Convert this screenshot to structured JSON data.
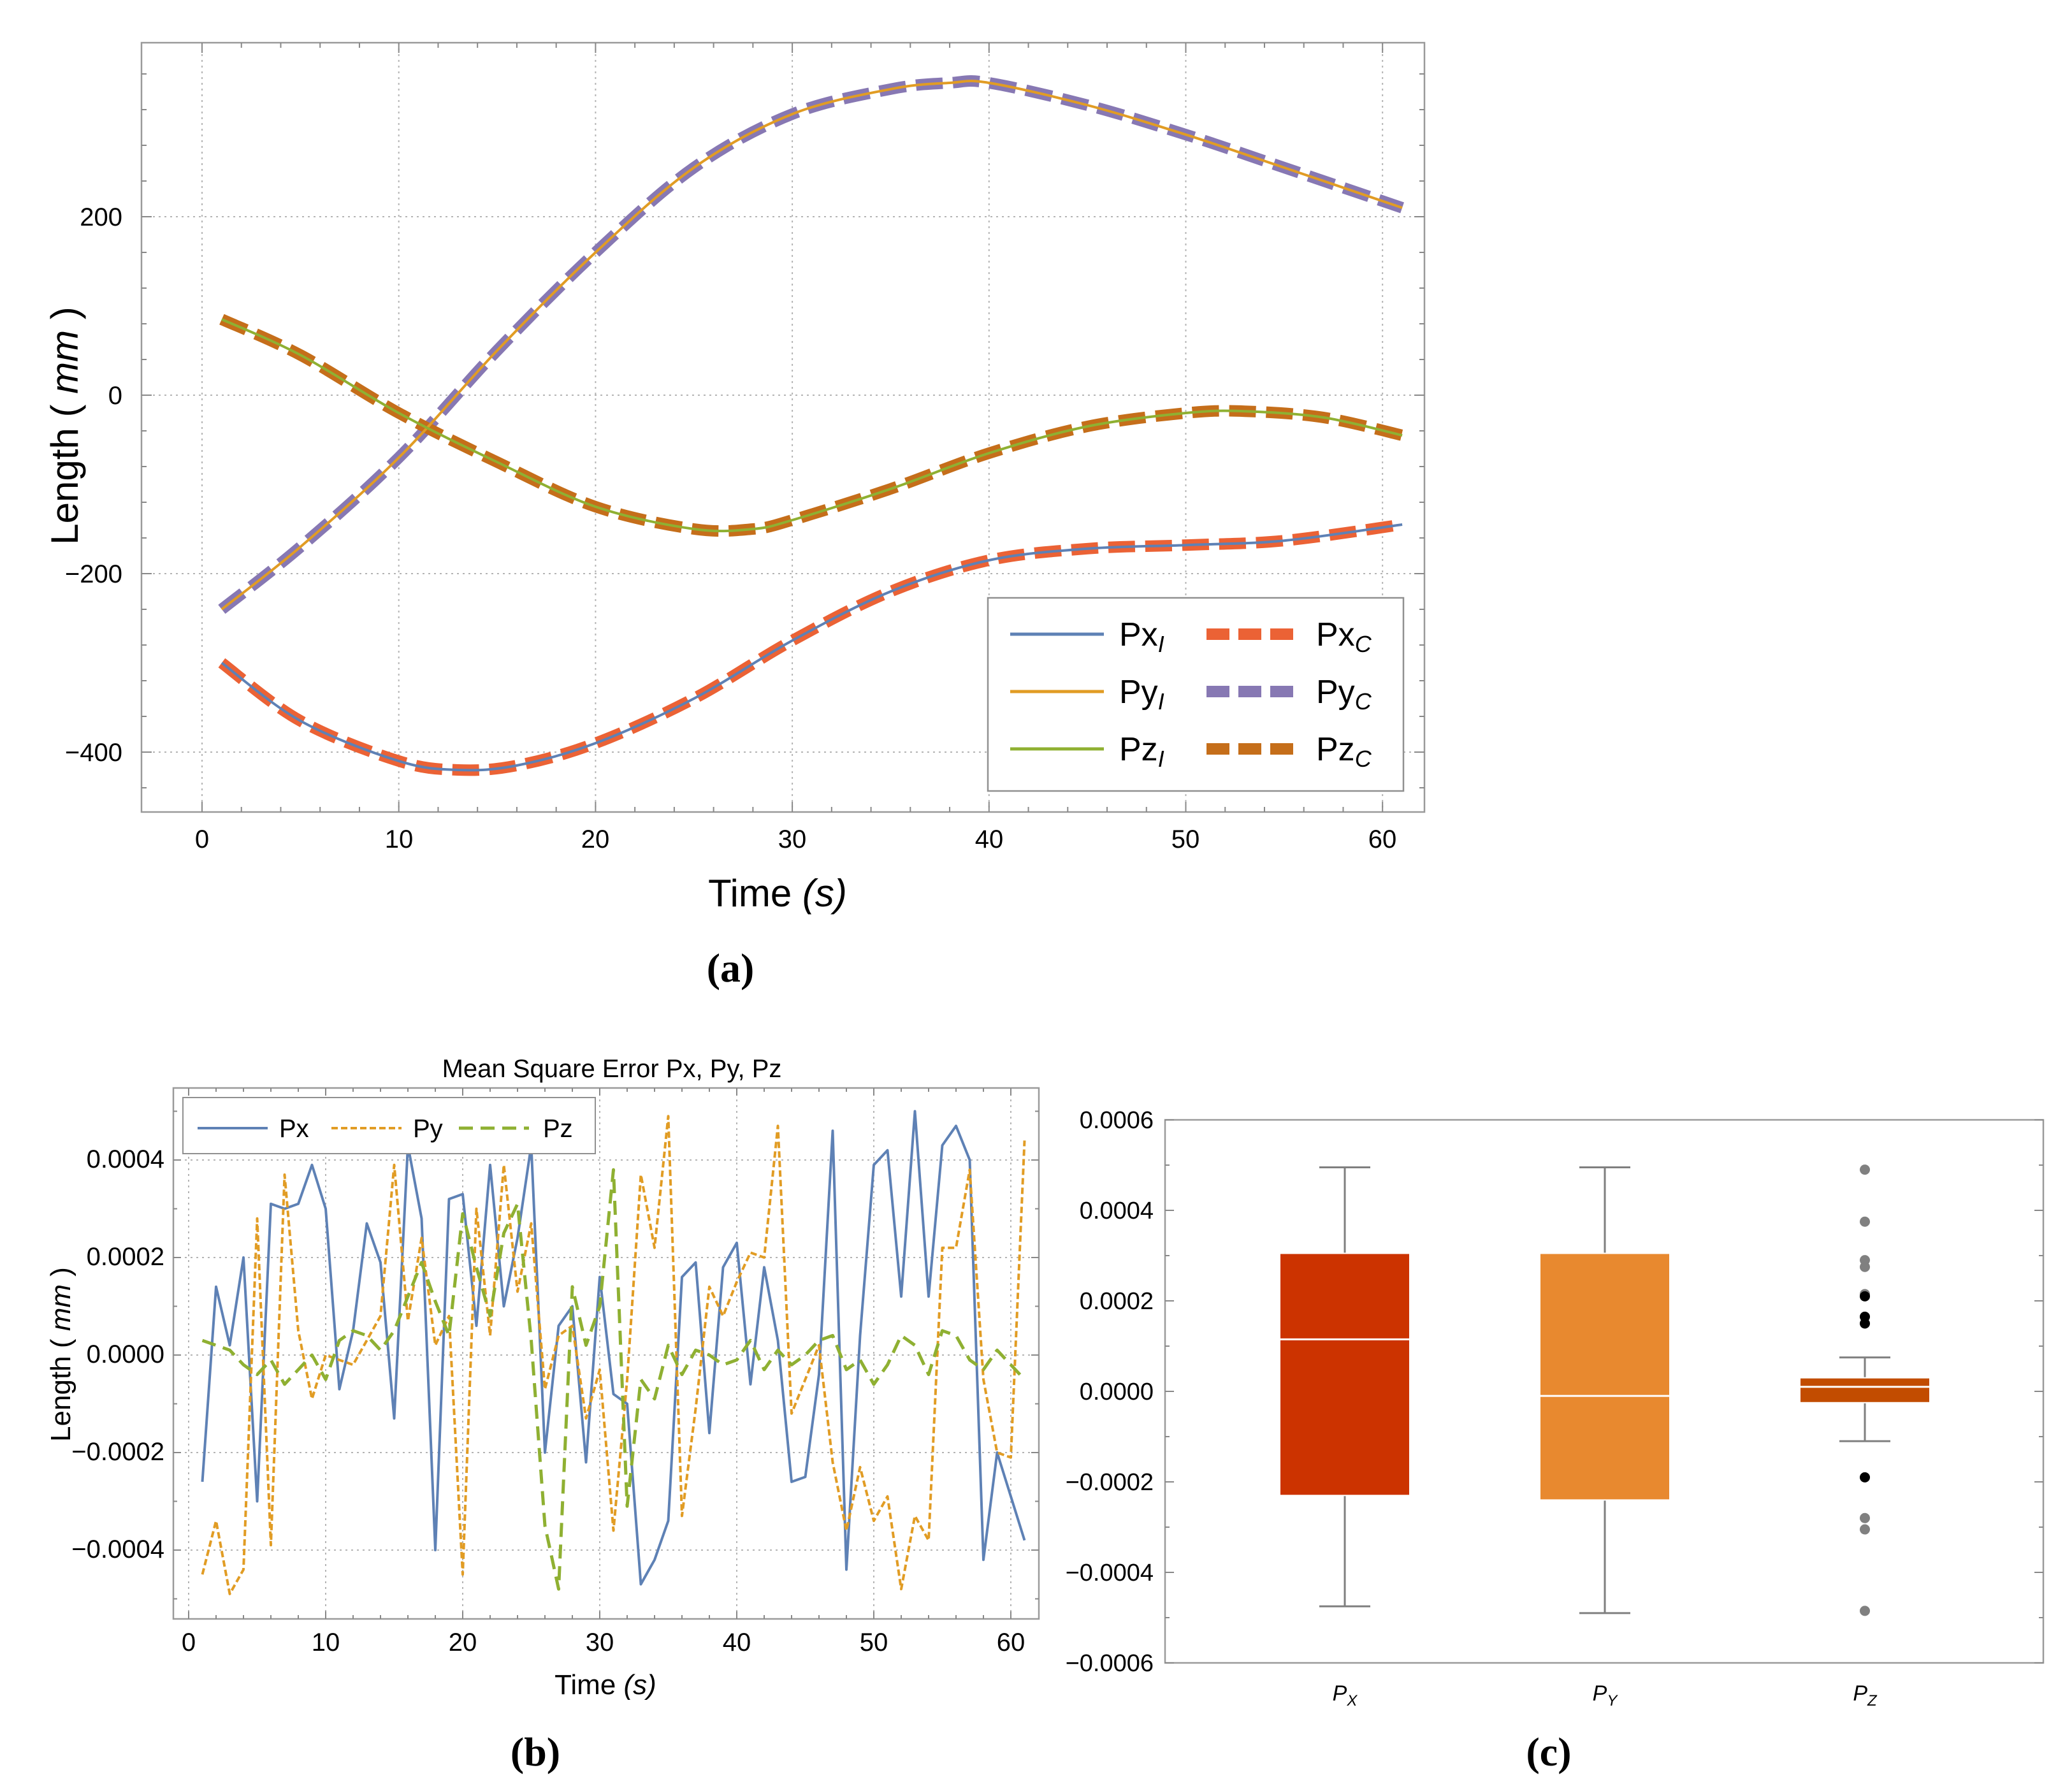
{
  "colors": {
    "px_line": "#5e81b5",
    "py_line": "#e19c24",
    "pz_line": "#8fb032",
    "px_dash": "#eb6235",
    "py_dash": "#8778b3",
    "pz_dash": "#c56e1a",
    "box_px": "#cc3300",
    "box_py": "#e8892f",
    "box_pz": "#c24c00",
    "whisker": "#7f7f7f",
    "outlier_far": "#808080",
    "outlier_near": "#000000"
  },
  "panel_a": {
    "label": "(a)",
    "xlabel_main": "Time ",
    "xlabel_unit": "(s)",
    "ylabel_main": "Length ( ",
    "ylabel_unit": "mm",
    "ylabel_close": " )",
    "x_ticks": [
      "0",
      "10",
      "20",
      "30",
      "40",
      "50",
      "60"
    ],
    "y_ticks": [
      "200",
      "0",
      "−200",
      "−400"
    ],
    "legend": [
      {
        "base": "Px",
        "sub": "I"
      },
      {
        "base": "Px",
        "sub": "C"
      },
      {
        "base": "Py",
        "sub": "I"
      },
      {
        "base": "Py",
        "sub": "C"
      },
      {
        "base": "Pz",
        "sub": "I"
      },
      {
        "base": "Pz",
        "sub": "C"
      }
    ]
  },
  "panel_b": {
    "label": "(b)",
    "title": "Mean Square Error Px, Py, Pz",
    "xlabel_main": "Time ",
    "xlabel_unit": "(s)",
    "ylabel_main": "Length ( ",
    "ylabel_unit": "mm",
    "ylabel_close": " )",
    "x_ticks": [
      "0",
      "10",
      "20",
      "30",
      "40",
      "50",
      "60"
    ],
    "y_ticks": [
      "0.0004",
      "0.0002",
      "0.0000",
      "−0.0002",
      "−0.0004"
    ],
    "legend": [
      "Px",
      "Py",
      "Pz"
    ]
  },
  "panel_c": {
    "label": "(c)",
    "y_ticks": [
      "0.0006",
      "0.0004",
      "0.0002",
      "0.0000",
      "−0.0002",
      "−0.0004",
      "−0.0006"
    ],
    "categories": [
      {
        "base": "P",
        "sub": "X"
      },
      {
        "base": "P",
        "sub": "Y"
      },
      {
        "base": "P",
        "sub": "Z"
      }
    ]
  },
  "chart_data": [
    {
      "type": "line",
      "id": "a",
      "title": "",
      "xlabel": "Time (s)",
      "ylabel": "Length ( mm )",
      "xlim": [
        -1,
        62
      ],
      "ylim": [
        -460,
        390
      ],
      "x": [
        1,
        61
      ],
      "series": [
        {
          "name": "Px_I",
          "role": "ideal",
          "key": [
            [
              1,
              -300
            ],
            [
              5,
              -365
            ],
            [
              10,
              -410
            ],
            [
              13,
              -420
            ],
            [
              16,
              -415
            ],
            [
              20,
              -390
            ],
            [
              25,
              -340
            ],
            [
              30,
              -275
            ],
            [
              35,
              -220
            ],
            [
              40,
              -185
            ],
            [
              45,
              -172
            ],
            [
              50,
              -168
            ],
            [
              55,
              -163
            ],
            [
              61,
              -145
            ]
          ]
        },
        {
          "name": "Py_I",
          "role": "ideal",
          "key": [
            [
              1,
              -240
            ],
            [
              5,
              -170
            ],
            [
              10,
              -70
            ],
            [
              15,
              50
            ],
            [
              20,
              160
            ],
            [
              25,
              255
            ],
            [
              30,
              315
            ],
            [
              35,
              343
            ],
            [
              38,
              350
            ],
            [
              40,
              350
            ],
            [
              45,
              325
            ],
            [
              50,
              292
            ],
            [
              55,
              255
            ],
            [
              61,
              210
            ]
          ]
        },
        {
          "name": "Pz_I",
          "role": "ideal",
          "key": [
            [
              1,
              85
            ],
            [
              5,
              45
            ],
            [
              10,
              -20
            ],
            [
              15,
              -75
            ],
            [
              20,
              -125
            ],
            [
              25,
              -150
            ],
            [
              28,
              -150
            ],
            [
              30,
              -140
            ],
            [
              35,
              -105
            ],
            [
              40,
              -65
            ],
            [
              45,
              -35
            ],
            [
              50,
              -20
            ],
            [
              53,
              -18
            ],
            [
              57,
              -25
            ],
            [
              61,
              -45
            ]
          ]
        },
        {
          "name": "Px_C",
          "role": "computed",
          "same_as": "Px_I"
        },
        {
          "name": "Py_C",
          "role": "computed",
          "same_as": "Py_I"
        },
        {
          "name": "Pz_C",
          "role": "computed",
          "same_as": "Pz_I"
        }
      ]
    },
    {
      "type": "line",
      "id": "b",
      "title": "Mean Square Error Px, Py, Pz",
      "xlabel": "Time (s)",
      "ylabel": "Length ( mm )",
      "xlim": [
        -1,
        62
      ],
      "ylim": [
        -0.00055,
        0.00052
      ],
      "x_start": 1,
      "series": [
        {
          "name": "Px",
          "values": [
            -0.00026,
            0.00014,
            2e-05,
            0.0002,
            -0.0003,
            0.00031,
            0.0003,
            0.00031,
            0.00039,
            0.0003,
            -7e-05,
            5e-05,
            0.00027,
            0.00019,
            -0.00013,
            0.00043,
            0.00028,
            -0.0004,
            0.00032,
            0.00033,
            6e-05,
            0.00039,
            0.0001,
            0.00024,
            0.00043,
            -0.0002,
            6e-05,
            0.0001,
            -0.00022,
            0.00016,
            -8e-05,
            -0.0001,
            -0.00047,
            -0.00042,
            -0.00034,
            0.00016,
            0.00019,
            -0.00016,
            0.00018,
            0.00023,
            -6e-05,
            0.00018,
            3e-05,
            -0.00026,
            -0.00025,
            -4e-05,
            0.00046,
            -0.00044,
            4e-05,
            0.00039,
            0.00042,
            0.00012,
            0.0005,
            0.00012,
            0.00043,
            0.00047,
            0.0004,
            -0.00042,
            -0.0002,
            -0.00029,
            -0.00038
          ]
        },
        {
          "name": "Py",
          "values": [
            -0.00045,
            -0.00034,
            -0.00049,
            -0.00044,
            0.00028,
            -0.00039,
            0.00037,
            5e-05,
            -9e-05,
            0.0,
            -1e-05,
            -2e-05,
            3e-05,
            8e-05,
            0.00039,
            7e-05,
            0.00024,
            2e-05,
            8e-05,
            -0.00045,
            0.0003,
            4e-05,
            0.00039,
            0.00013,
            0.00027,
            -7e-05,
            4e-05,
            6e-05,
            -0.00013,
            -3e-05,
            -0.00036,
            -5e-05,
            0.00037,
            0.00022,
            0.00049,
            -0.00033,
            -0.00011,
            0.00014,
            8e-05,
            0.00015,
            0.00021,
            0.0002,
            0.00047,
            -0.00012,
            -5e-05,
            2e-05,
            -0.00022,
            -0.00036,
            -0.00023,
            -0.00034,
            -0.00029,
            -0.00048,
            -0.00033,
            -0.00038,
            0.00022,
            0.00022,
            0.00038,
            -5e-05,
            -0.0002,
            -0.00021,
            0.00044
          ]
        },
        {
          "name": "Pz",
          "values": [
            3e-05,
            2e-05,
            1e-05,
            -2e-05,
            -4e-05,
            -1e-05,
            -6e-05,
            -3e-05,
            0.0,
            -5e-05,
            3e-05,
            5e-05,
            4e-05,
            1e-05,
            5e-05,
            0.00012,
            0.00019,
            0.00011,
            4e-05,
            0.00029,
            0.00018,
            8e-05,
            0.00025,
            0.00031,
            3e-05,
            -0.00035,
            -0.00048,
            0.00014,
            2e-05,
            0.0001,
            0.00038,
            -0.00031,
            -5e-05,
            -9e-05,
            2e-05,
            -4e-05,
            1e-05,
            0.0,
            -2e-05,
            -1e-05,
            3e-05,
            -3e-05,
            1e-05,
            -2e-05,
            0.0,
            3e-05,
            4e-05,
            -3e-05,
            -1e-05,
            -6e-05,
            -2e-05,
            4e-05,
            2e-05,
            -4e-05,
            5e-05,
            4e-05,
            -1e-05,
            -3e-05,
            1e-05,
            -2e-05,
            -5e-05
          ]
        }
      ]
    },
    {
      "type": "box",
      "id": "c",
      "ylim": [
        -0.0006,
        0.0006
      ],
      "categories": [
        "P_X",
        "P_Y",
        "P_Z"
      ],
      "boxes": [
        {
          "name": "P_X",
          "q1": -0.00023,
          "median": 0.000115,
          "q3": 0.000305,
          "whisker_low": -0.000475,
          "whisker_high": 0.000495,
          "outliers_far": [],
          "outliers_near": []
        },
        {
          "name": "P_Y",
          "q1": -0.00024,
          "median": -1e-05,
          "q3": 0.000305,
          "whisker_low": -0.00049,
          "whisker_high": 0.000495,
          "outliers_far": [],
          "outliers_near": []
        },
        {
          "name": "P_Z",
          "q1": -2.5e-05,
          "median": 1e-05,
          "q3": 3e-05,
          "whisker_low": -0.00011,
          "whisker_high": 7.5e-05,
          "outliers_far": [
            0.00049,
            0.000375,
            0.00029,
            0.000275,
            0.000215,
            -0.00028,
            -0.000305,
            -0.000485
          ],
          "outliers_near": [
            0.00021,
            0.000165,
            0.00015,
            -0.00019
          ]
        }
      ]
    }
  ]
}
